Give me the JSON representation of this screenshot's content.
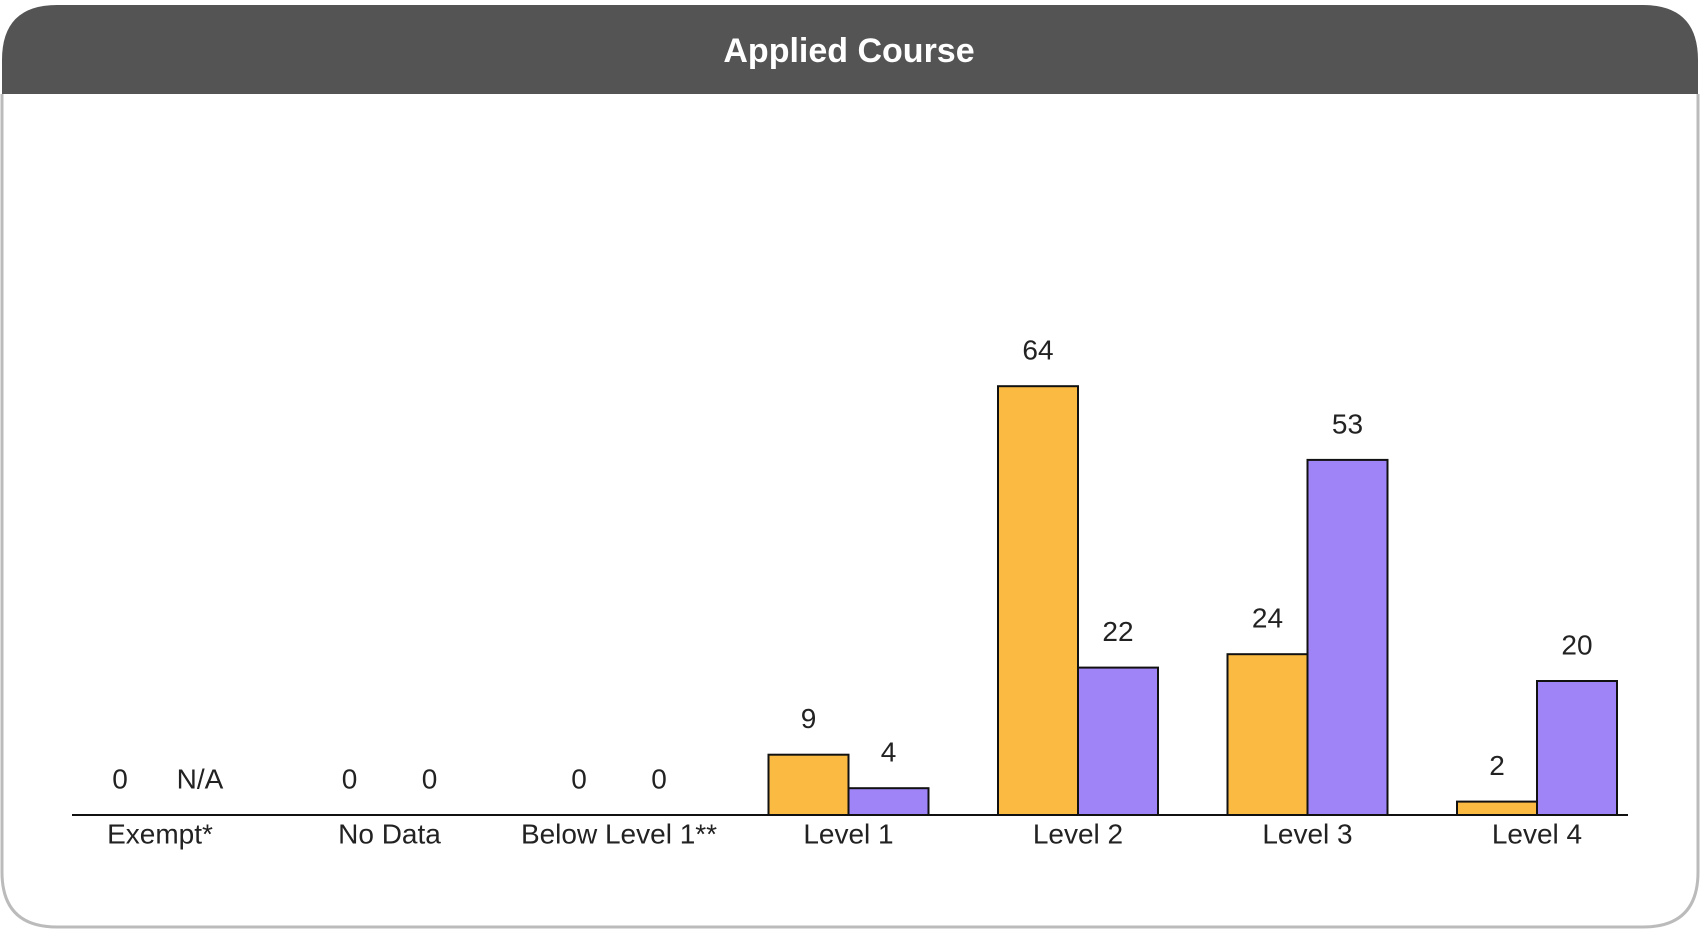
{
  "chart_data": {
    "type": "bar",
    "title": "Applied Course",
    "categories": [
      "Exempt*",
      "No Data",
      "Below Level 1**",
      "Level 1",
      "Level 2",
      "Level 3",
      "Level 4"
    ],
    "series": [
      {
        "color": "#fbbb43",
        "values": [
          0,
          0,
          0,
          9,
          64,
          24,
          2
        ]
      },
      {
        "color": "#9f84f8",
        "values": [
          null,
          0,
          0,
          4,
          22,
          53,
          20
        ],
        "value_labels": [
          "N/A",
          null,
          null,
          null,
          null,
          null,
          null
        ]
      }
    ],
    "ylim": [
      0,
      70
    ]
  }
}
